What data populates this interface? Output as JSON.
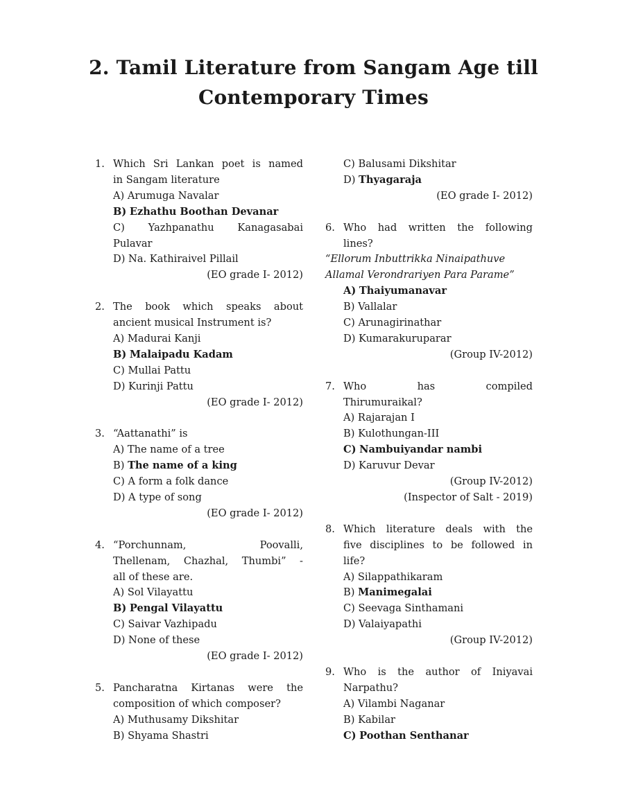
{
  "title": [
    "2. Tamil Literature from Sangam Age till",
    "Contemporary Times"
  ],
  "questions": [
    {
      "num": "1.",
      "stem": [
        "Which Sri Lankan poet is named",
        "in Sangam literature"
      ],
      "options": [
        {
          "label": "A)",
          "lines": [
            "Arumuga Navalar"
          ]
        },
        {
          "label": "B)",
          "lines": [
            "Ezhathu Boothan Devanar"
          ],
          "answer": true,
          "label_bold": true
        },
        {
          "label": "C)",
          "lines": [
            "Yazhpanathu Kanagasabai",
            "Pulavar"
          ]
        },
        {
          "label": "D)",
          "lines": [
            "Na. Kathiraivel Pillail"
          ]
        }
      ],
      "sources": [
        "(EO grade I- 2012)"
      ]
    },
    {
      "num": "2.",
      "stem": [
        "The book which speaks about",
        "ancient musical Instrument is?"
      ],
      "options": [
        {
          "label": "A)",
          "lines": [
            "Madurai Kanji"
          ]
        },
        {
          "label": "B)",
          "lines": [
            "Malaipadu Kadam"
          ],
          "answer": true,
          "label_bold": true
        },
        {
          "label": "C)",
          "lines": [
            "Mullai Pattu"
          ]
        },
        {
          "label": "D)",
          "lines": [
            "Kurinji Pattu"
          ]
        }
      ],
      "sources": [
        "(EO grade I- 2012)"
      ]
    },
    {
      "num": "3.",
      "stem": [
        "“Aattanathi” is"
      ],
      "options": [
        {
          "label": "A)",
          "lines": [
            "The name of a tree"
          ]
        },
        {
          "label": "B)",
          "lines": [
            "The name of a king"
          ],
          "answer": true,
          "label_bold": false
        },
        {
          "label": "C)",
          "lines": [
            "A form a folk dance"
          ]
        },
        {
          "label": "D)",
          "lines": [
            "A type of song"
          ]
        }
      ],
      "sources": [
        "(EO grade I- 2012)"
      ]
    },
    {
      "num": "4.",
      "stem": [
        "“Porchunnam, Poovalli,",
        "Thellenam, Chazhal, Thumbi” -",
        "all of these are."
      ],
      "options": [
        {
          "label": "A)",
          "lines": [
            "Sol Vilayattu"
          ]
        },
        {
          "label": "B)",
          "lines": [
            "Pengal Vilayattu"
          ],
          "answer": true,
          "label_bold": true
        },
        {
          "label": "C)",
          "lines": [
            "Saivar Vazhipadu"
          ]
        },
        {
          "label": "D)",
          "lines": [
            "None of these"
          ]
        }
      ],
      "sources": [
        "(EO grade I- 2012)"
      ]
    },
    {
      "num": "5.",
      "stem": [
        "Pancharatna Kirtanas were the",
        "composition of which composer?"
      ],
      "options": [
        {
          "label": "A)",
          "lines": [
            "Muthusamy Dikshitar"
          ]
        },
        {
          "label": "B)",
          "lines": [
            "Shyama Shastri"
          ]
        },
        {
          "label": "C)",
          "lines": [
            "Balusami Dikshitar"
          ]
        },
        {
          "label": "D)",
          "lines": [
            "Thyagaraja"
          ],
          "answer": true,
          "label_bold": false
        }
      ],
      "sources": [
        "(EO grade I- 2012)"
      ]
    },
    {
      "num": "6.",
      "stem": [
        "Who had written the following",
        "lines?"
      ],
      "quote": [
        "“Ellorum Inbuttrikka Ninaipathuve",
        "Allamal Verondrariyen Para Parame”"
      ],
      "options": [
        {
          "label": "A)",
          "lines": [
            "Thaiyumanavar"
          ],
          "answer": true,
          "label_bold": true
        },
        {
          "label": "B)",
          "lines": [
            "Vallalar"
          ]
        },
        {
          "label": "C)",
          "lines": [
            "Arunagirinathar"
          ]
        },
        {
          "label": "D)",
          "lines": [
            "Kumarakuruparar"
          ]
        }
      ],
      "sources": [
        "(Group IV-2012)"
      ]
    },
    {
      "num": "7.",
      "stem": [
        "Who has compiled",
        "Thirumuraikal?"
      ],
      "options": [
        {
          "label": "A)",
          "lines": [
            "Rajarajan I"
          ]
        },
        {
          "label": "B)",
          "lines": [
            "Kulothungan-III"
          ]
        },
        {
          "label": "C)",
          "lines": [
            "Nambuiyandar nambi"
          ],
          "answer": true,
          "label_bold": true
        },
        {
          "label": "D)",
          "lines": [
            "Karuvur Devar"
          ]
        }
      ],
      "sources": [
        "(Group IV-2012)",
        "(Inspector of Salt - 2019)"
      ]
    },
    {
      "num": "8.",
      "stem": [
        "Which literature deals with the",
        "five disciplines to be followed in",
        "life?"
      ],
      "options": [
        {
          "label": "A)",
          "lines": [
            "Silappathikaram"
          ]
        },
        {
          "label": "B)",
          "lines": [
            "Manimegalai"
          ],
          "answer": true,
          "label_bold": false
        },
        {
          "label": "C)",
          "lines": [
            "Seevaga Sinthamani"
          ]
        },
        {
          "label": "D)",
          "lines": [
            "Valaiyapathi"
          ]
        }
      ],
      "sources": [
        "(Group IV-2012)"
      ]
    },
    {
      "num": "9.",
      "stem": [
        "Who is the author of Iniyavai",
        "Narpathu?"
      ],
      "options": [
        {
          "label": "A)",
          "lines": [
            "Vilambi Naganar"
          ]
        },
        {
          "label": "B)",
          "lines": [
            "Kabilar"
          ]
        },
        {
          "label": "C)",
          "lines": [
            "Poothan Senthanar"
          ],
          "answer": true,
          "label_bold": true
        }
      ],
      "sources": []
    }
  ]
}
